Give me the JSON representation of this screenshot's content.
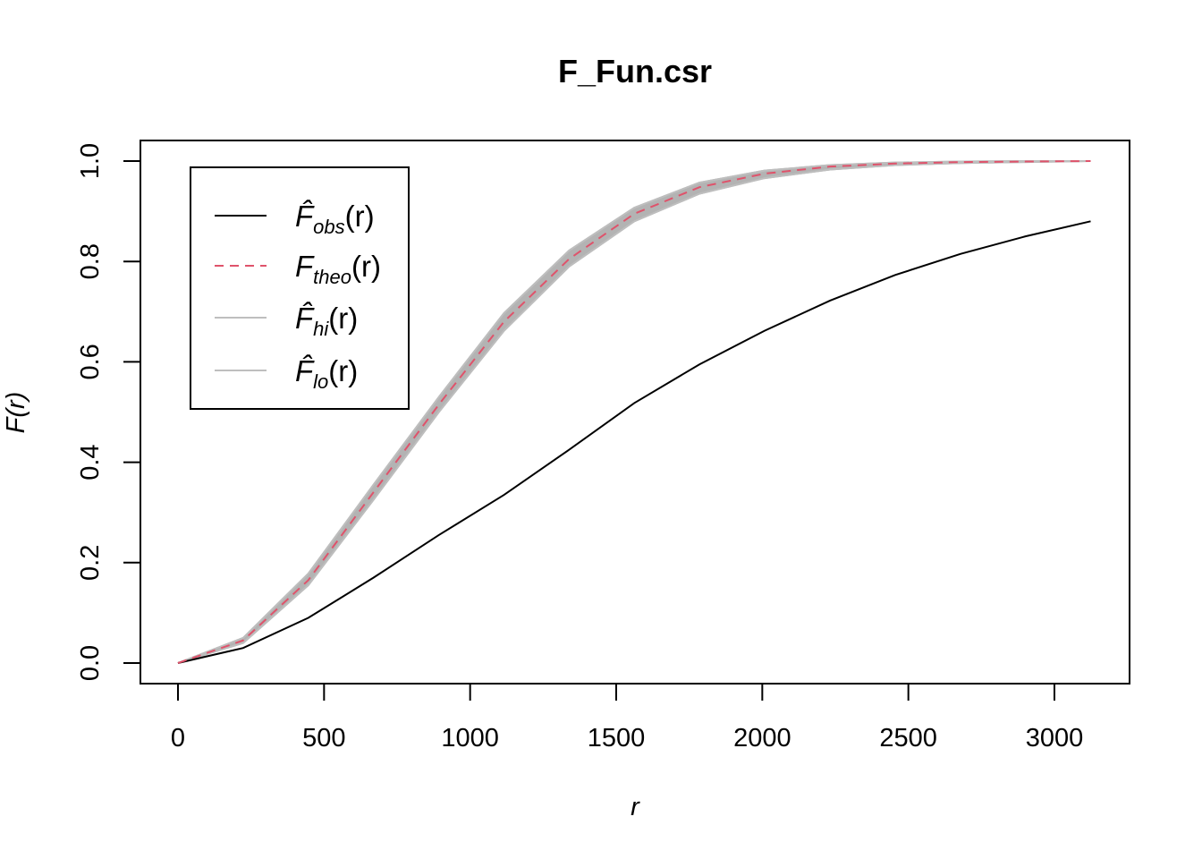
{
  "chart_data": {
    "type": "line",
    "title": "F_Fun.csr",
    "xlabel": "r",
    "ylabel": "F(r)",
    "xlim": [
      0,
      3150
    ],
    "ylim": [
      0,
      1
    ],
    "x_ticks": [
      "0",
      "500",
      "1000",
      "1500",
      "2000",
      "2500",
      "3000"
    ],
    "y_ticks": [
      "0.0",
      "0.2",
      "0.4",
      "0.6",
      "0.8",
      "1.0"
    ],
    "legend_position": "top-left",
    "x": [
      0,
      223,
      446,
      669,
      893,
      1116,
      1339,
      1562,
      1785,
      2008,
      2232,
      2455,
      2678,
      2901,
      3124
    ],
    "series": [
      {
        "name": "F̂obs(r)",
        "label_main": "F̂",
        "label_sub": "obs",
        "label_tail": "(r)",
        "color": "#000000",
        "style": "solid",
        "values": [
          0.0,
          0.03,
          0.09,
          0.17,
          0.255,
          0.335,
          0.425,
          0.518,
          0.595,
          0.662,
          0.722,
          0.773,
          0.815,
          0.85,
          0.88
        ]
      },
      {
        "name": "Ftheo(r)",
        "label_main": "F",
        "label_sub": "theo",
        "label_tail": "(r)",
        "color": "#DF536B",
        "style": "dashed",
        "values": [
          0.0,
          0.045,
          0.165,
          0.34,
          0.515,
          0.68,
          0.805,
          0.895,
          0.948,
          0.975,
          0.989,
          0.995,
          0.998,
          0.999,
          1.0
        ]
      },
      {
        "name": "F̂hi(r)",
        "label_main": "F̂",
        "label_sub": "hi",
        "label_tail": "(r)",
        "color": "#BEBEBE",
        "style": "solid",
        "values": [
          0.0,
          0.05,
          0.178,
          0.355,
          0.53,
          0.697,
          0.822,
          0.907,
          0.957,
          0.981,
          0.992,
          0.997,
          0.999,
          1.0,
          1.0
        ]
      },
      {
        "name": "F̂lo(r)",
        "label_main": "F̂",
        "label_sub": "lo",
        "label_tail": "(r)",
        "color": "#BEBEBE",
        "style": "solid",
        "values": [
          0.0,
          0.04,
          0.155,
          0.325,
          0.5,
          0.662,
          0.79,
          0.88,
          0.935,
          0.966,
          0.983,
          0.992,
          0.996,
          0.998,
          1.0
        ]
      }
    ],
    "envelope": {
      "upper": "F̂hi(r)",
      "lower": "F̂lo(r)",
      "fill": "#B3B3B3"
    }
  }
}
